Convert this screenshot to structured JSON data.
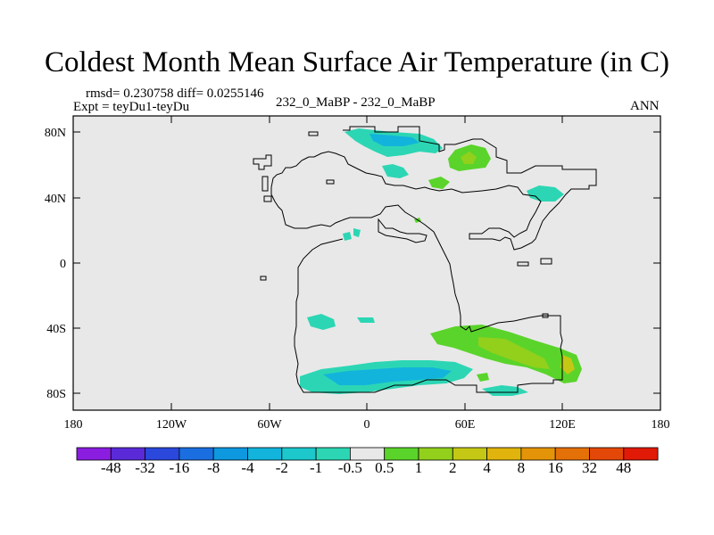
{
  "title": "Coldest Month Mean Surface Air Temperature (in C)",
  "stats_line": "rmsd= 0.230758  diff= 0.0255146",
  "experiment": "Expt = teyDu1-teyDu",
  "center_label": "232_0_MaBP - 232_0_MaBP",
  "season": "ANN",
  "axes": {
    "x_ticks": [
      "180",
      "120W",
      "60W",
      "0",
      "60E",
      "120E",
      "180"
    ],
    "y_ticks": [
      "80N",
      "40N",
      "0",
      "40S",
      "80S"
    ]
  },
  "colorbar": {
    "labels": [
      "-48",
      "-32",
      "-16",
      "-8",
      "-4",
      "-2",
      "-1",
      "-0.5",
      "0.5",
      "1",
      "2",
      "4",
      "8",
      "16",
      "32",
      "48"
    ],
    "colors": [
      "#8a1de0",
      "#5a2ad8",
      "#2a48dc",
      "#1a6ee0",
      "#0e98e0",
      "#12b4dc",
      "#1cc8cc",
      "#2cd6b4",
      "#e8e8e8",
      "#5ad42a",
      "#92d01c",
      "#c4c814",
      "#e0b40c",
      "#e49408",
      "#e47008",
      "#e44808",
      "#e01a06"
    ]
  },
  "colors": {
    "ocean": "#e8e8e8",
    "coast": "#000000"
  }
}
